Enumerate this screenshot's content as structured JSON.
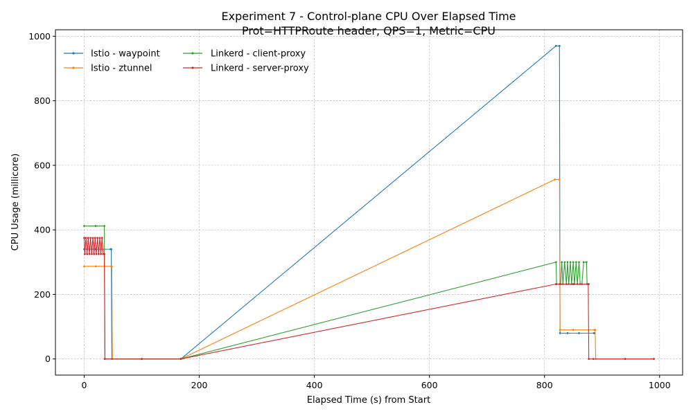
{
  "chart_data": {
    "type": "line",
    "title": "Experiment 7 - Control-plane CPU Over Elapsed Time",
    "subtitle": "Prot=HTTPRoute header, QPS=1, Metric=CPU",
    "xlabel": "Elapsed Time (s) from Start",
    "ylabel": "CPU Usage (millicore)",
    "xlim": [
      -50,
      1040
    ],
    "ylim": [
      -50,
      1020
    ],
    "xticks": [
      0,
      200,
      400,
      600,
      800,
      1000
    ],
    "yticks": [
      0,
      200,
      400,
      600,
      800,
      1000
    ],
    "grid": true,
    "legend_position": "top-left",
    "series": [
      {
        "name": "Istio - waypoint",
        "color": "#1f77b4",
        "points": [
          [
            0,
            340
          ],
          [
            20,
            340
          ],
          [
            46,
            340
          ],
          [
            47,
            340
          ],
          [
            48,
            0
          ],
          [
            100,
            0
          ],
          [
            168,
            0
          ],
          [
            820,
            970
          ],
          [
            826,
            970
          ],
          [
            827,
            80
          ],
          [
            840,
            80
          ],
          [
            860,
            80
          ],
          [
            886,
            80
          ],
          [
            887,
            80
          ]
        ]
      },
      {
        "name": "Istio - ztunnel",
        "color": "#ff7f0e",
        "points": [
          [
            0,
            287
          ],
          [
            20,
            287
          ],
          [
            47,
            287
          ],
          [
            48,
            287
          ],
          [
            49,
            0
          ],
          [
            100,
            0
          ],
          [
            168,
            0
          ],
          [
            818,
            556
          ],
          [
            826,
            556
          ],
          [
            827,
            90
          ],
          [
            850,
            90
          ],
          [
            887,
            90
          ],
          [
            888,
            90
          ],
          [
            889,
            0
          ],
          [
            940,
            0
          ],
          [
            990,
            0
          ]
        ]
      },
      {
        "name": "Linkerd - client-proxy",
        "color": "#2ca02c",
        "points": [
          [
            0,
            412
          ],
          [
            20,
            412
          ],
          [
            35,
            412
          ],
          [
            36,
            0
          ],
          [
            100,
            0
          ],
          [
            168,
            0
          ],
          [
            820,
            300
          ],
          [
            821,
            232
          ],
          [
            826,
            232
          ],
          [
            828,
            232
          ],
          [
            830,
            300
          ],
          [
            832,
            232
          ],
          [
            835,
            300
          ],
          [
            838,
            232
          ],
          [
            840,
            300
          ],
          [
            842,
            232
          ],
          [
            845,
            300
          ],
          [
            847,
            232
          ],
          [
            850,
            300
          ],
          [
            852,
            232
          ],
          [
            855,
            300
          ],
          [
            857,
            232
          ],
          [
            860,
            300
          ],
          [
            862,
            232
          ],
          [
            865,
            232
          ],
          [
            868,
            300
          ],
          [
            873,
            300
          ],
          [
            874,
            232
          ],
          [
            877,
            232
          ]
        ]
      },
      {
        "name": "Linkerd - server-proxy",
        "color": "#d62728",
        "points": [
          [
            0,
            375
          ],
          [
            1,
            325
          ],
          [
            3,
            375
          ],
          [
            5,
            325
          ],
          [
            7,
            375
          ],
          [
            9,
            325
          ],
          [
            11,
            375
          ],
          [
            13,
            325
          ],
          [
            15,
            375
          ],
          [
            17,
            325
          ],
          [
            19,
            375
          ],
          [
            21,
            325
          ],
          [
            23,
            375
          ],
          [
            25,
            325
          ],
          [
            27,
            375
          ],
          [
            29,
            325
          ],
          [
            31,
            375
          ],
          [
            33,
            325
          ],
          [
            35,
            325
          ],
          [
            36,
            0
          ],
          [
            100,
            0
          ],
          [
            168,
            0
          ],
          [
            820,
            232
          ],
          [
            850,
            232
          ],
          [
            876,
            232
          ],
          [
            877,
            0
          ],
          [
            885,
            0
          ],
          [
            940,
            0
          ],
          [
            990,
            0
          ]
        ]
      }
    ]
  }
}
